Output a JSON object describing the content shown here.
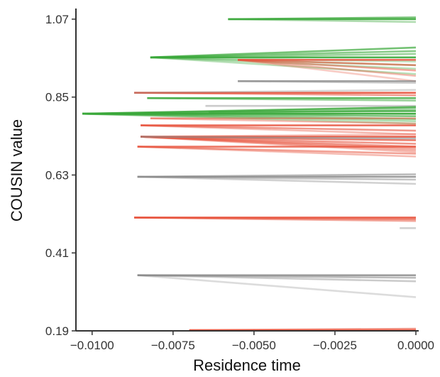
{
  "chart_data": {
    "type": "line",
    "title": "",
    "xlabel": "Residence time",
    "ylabel": "COUSIN value",
    "xlim": [
      -0.0105,
      0.0
    ],
    "ylim": [
      0.19,
      1.1
    ],
    "grid": false,
    "legend": "none",
    "x_ticks": [
      -0.01,
      -0.0075,
      -0.005,
      -0.0025,
      0.0
    ],
    "x_tick_labels": [
      "−0.0100",
      "−0.0075",
      "−0.0050",
      "−0.0025",
      "0.0000"
    ],
    "y_ticks": [
      0.19,
      0.41,
      0.63,
      0.85,
      1.07
    ],
    "y_tick_labels": [
      "0.19",
      "0.41",
      "0.63",
      "0.85",
      "1.07"
    ],
    "colors": {
      "green": "#3aa83a",
      "red": "#e8553f",
      "gray": "#8c8c8c"
    },
    "series": [
      {
        "group": "green",
        "opacity": 0.9,
        "x": [
          -0.0058,
          0.0
        ],
        "y": [
          1.07,
          1.07
        ]
      },
      {
        "group": "green",
        "opacity": 0.7,
        "x": [
          -0.0058,
          0.0
        ],
        "y": [
          1.07,
          1.075
        ]
      },
      {
        "group": "green",
        "opacity": 0.4,
        "x": [
          -0.0058,
          0.0
        ],
        "y": [
          1.07,
          1.062
        ]
      },
      {
        "group": "green",
        "opacity": 0.9,
        "x": [
          -0.0082,
          0.0
        ],
        "y": [
          0.962,
          0.962
        ]
      },
      {
        "group": "green",
        "opacity": 0.7,
        "x": [
          -0.0082,
          0.0
        ],
        "y": [
          0.962,
          0.99
        ]
      },
      {
        "group": "green",
        "opacity": 0.6,
        "x": [
          -0.0082,
          0.0
        ],
        "y": [
          0.962,
          0.98
        ]
      },
      {
        "group": "green",
        "opacity": 0.5,
        "x": [
          -0.0082,
          0.0
        ],
        "y": [
          0.962,
          0.972
        ]
      },
      {
        "group": "green",
        "opacity": 0.4,
        "x": [
          -0.0082,
          0.0
        ],
        "y": [
          0.962,
          0.94
        ]
      },
      {
        "group": "green",
        "opacity": 0.35,
        "x": [
          -0.0082,
          0.0
        ],
        "y": [
          0.962,
          0.93
        ]
      },
      {
        "group": "green",
        "opacity": 0.35,
        "x": [
          -0.0082,
          0.0
        ],
        "y": [
          0.962,
          0.915
        ]
      },
      {
        "group": "green",
        "opacity": 0.3,
        "x": [
          -0.0082,
          0.0
        ],
        "y": [
          0.962,
          0.95
        ]
      },
      {
        "group": "red",
        "opacity": 0.85,
        "x": [
          -0.0055,
          0.0
        ],
        "y": [
          0.955,
          0.955
        ]
      },
      {
        "group": "red",
        "opacity": 0.6,
        "x": [
          -0.0055,
          0.0
        ],
        "y": [
          0.955,
          0.94
        ]
      },
      {
        "group": "red",
        "opacity": 0.5,
        "x": [
          -0.0055,
          0.0
        ],
        "y": [
          0.955,
          0.925
        ]
      },
      {
        "group": "red",
        "opacity": 0.4,
        "x": [
          -0.0055,
          0.0
        ],
        "y": [
          0.955,
          0.91
        ]
      },
      {
        "group": "red",
        "opacity": 0.3,
        "x": [
          -0.0055,
          0.0
        ],
        "y": [
          0.955,
          0.895
        ]
      },
      {
        "group": "gray",
        "opacity": 0.8,
        "x": [
          -0.0055,
          0.0
        ],
        "y": [
          0.895,
          0.895
        ]
      },
      {
        "group": "gray",
        "opacity": 0.4,
        "x": [
          -0.0055,
          0.0
        ],
        "y": [
          0.895,
          0.89
        ]
      },
      {
        "group": "red",
        "opacity": 0.9,
        "x": [
          -0.0087,
          0.0
        ],
        "y": [
          0.862,
          0.862
        ]
      },
      {
        "group": "red",
        "opacity": 0.6,
        "x": [
          -0.0087,
          0.0
        ],
        "y": [
          0.862,
          0.855
        ]
      },
      {
        "group": "gray",
        "opacity": 0.35,
        "x": [
          -0.0087,
          0.0
        ],
        "y": [
          0.862,
          0.87
        ]
      },
      {
        "group": "green",
        "opacity": 0.8,
        "x": [
          -0.0083,
          0.0
        ],
        "y": [
          0.847,
          0.847
        ]
      },
      {
        "group": "green",
        "opacity": 0.5,
        "x": [
          -0.0083,
          0.0
        ],
        "y": [
          0.847,
          0.84
        ]
      },
      {
        "group": "gray",
        "opacity": 0.45,
        "x": [
          -0.0065,
          0.0
        ],
        "y": [
          0.825,
          0.825
        ]
      },
      {
        "group": "green",
        "opacity": 0.95,
        "x": [
          -0.0103,
          0.0
        ],
        "y": [
          0.803,
          0.803
        ]
      },
      {
        "group": "green",
        "opacity": 0.8,
        "x": [
          -0.0103,
          0.0
        ],
        "y": [
          0.803,
          0.822
        ]
      },
      {
        "group": "green",
        "opacity": 0.7,
        "x": [
          -0.0103,
          0.0
        ],
        "y": [
          0.803,
          0.812
        ]
      },
      {
        "group": "green",
        "opacity": 0.65,
        "x": [
          -0.0103,
          0.0
        ],
        "y": [
          0.803,
          0.796
        ]
      },
      {
        "group": "green",
        "opacity": 0.55,
        "x": [
          -0.0103,
          0.0
        ],
        "y": [
          0.803,
          0.788
        ]
      },
      {
        "group": "green",
        "opacity": 0.5,
        "x": [
          -0.0103,
          0.0
        ],
        "y": [
          0.803,
          0.818
        ]
      },
      {
        "group": "green",
        "opacity": 0.4,
        "x": [
          -0.0103,
          0.0
        ],
        "y": [
          0.803,
          0.782
        ]
      },
      {
        "group": "green",
        "opacity": 0.35,
        "x": [
          -0.0103,
          0.0
        ],
        "y": [
          0.803,
          0.775
        ]
      },
      {
        "group": "green",
        "opacity": 0.6,
        "x": [
          -0.0064,
          0.0
        ],
        "y": [
          0.808,
          0.81
        ]
      },
      {
        "group": "red",
        "opacity": 0.5,
        "x": [
          -0.0082,
          0.0
        ],
        "y": [
          0.79,
          0.79
        ]
      },
      {
        "group": "red",
        "opacity": 0.4,
        "x": [
          -0.0082,
          0.0
        ],
        "y": [
          0.79,
          0.775
        ]
      },
      {
        "group": "red",
        "opacity": 0.85,
        "x": [
          -0.0085,
          0.0
        ],
        "y": [
          0.77,
          0.77
        ]
      },
      {
        "group": "red",
        "opacity": 0.6,
        "x": [
          -0.0085,
          0.0
        ],
        "y": [
          0.77,
          0.755
        ]
      },
      {
        "group": "red",
        "opacity": 0.4,
        "x": [
          -0.0085,
          0.0
        ],
        "y": [
          0.77,
          0.745
        ]
      },
      {
        "group": "red",
        "opacity": 0.9,
        "x": [
          -0.0085,
          0.0
        ],
        "y": [
          0.738,
          0.738
        ]
      },
      {
        "group": "red",
        "opacity": 0.75,
        "x": [
          -0.0085,
          0.0
        ],
        "y": [
          0.738,
          0.728
        ]
      },
      {
        "group": "red",
        "opacity": 0.6,
        "x": [
          -0.0085,
          0.0
        ],
        "y": [
          0.738,
          0.718
        ]
      },
      {
        "group": "red",
        "opacity": 0.55,
        "x": [
          -0.0085,
          0.0
        ],
        "y": [
          0.738,
          0.71
        ]
      },
      {
        "group": "red",
        "opacity": 0.5,
        "x": [
          -0.0085,
          0.0
        ],
        "y": [
          0.738,
          0.705
        ]
      },
      {
        "group": "red",
        "opacity": 0.45,
        "x": [
          -0.0085,
          0.0
        ],
        "y": [
          0.738,
          0.7
        ]
      },
      {
        "group": "red",
        "opacity": 0.4,
        "x": [
          -0.0085,
          0.0
        ],
        "y": [
          0.738,
          0.695
        ]
      },
      {
        "group": "red",
        "opacity": 0.35,
        "x": [
          -0.0085,
          0.0
        ],
        "y": [
          0.738,
          0.745
        ]
      },
      {
        "group": "gray",
        "opacity": 0.6,
        "x": [
          -0.0085,
          0.0
        ],
        "y": [
          0.738,
          0.733
        ]
      },
      {
        "group": "red",
        "opacity": 0.8,
        "x": [
          -0.0086,
          0.0
        ],
        "y": [
          0.71,
          0.71
        ]
      },
      {
        "group": "red",
        "opacity": 0.55,
        "x": [
          -0.0086,
          0.0
        ],
        "y": [
          0.71,
          0.69
        ]
      },
      {
        "group": "red",
        "opacity": 0.4,
        "x": [
          -0.0086,
          0.0
        ],
        "y": [
          0.71,
          0.682
        ]
      },
      {
        "group": "gray",
        "opacity": 0.85,
        "x": [
          -0.0086,
          0.0
        ],
        "y": [
          0.625,
          0.625
        ]
      },
      {
        "group": "gray",
        "opacity": 0.6,
        "x": [
          -0.0086,
          0.0
        ],
        "y": [
          0.625,
          0.632
        ]
      },
      {
        "group": "gray",
        "opacity": 0.5,
        "x": [
          -0.0086,
          0.0
        ],
        "y": [
          0.625,
          0.617
        ]
      },
      {
        "group": "gray",
        "opacity": 0.4,
        "x": [
          -0.0086,
          0.0
        ],
        "y": [
          0.625,
          0.605
        ]
      },
      {
        "group": "red",
        "opacity": 0.9,
        "x": [
          -0.0087,
          0.0
        ],
        "y": [
          0.51,
          0.51
        ]
      },
      {
        "group": "red",
        "opacity": 0.7,
        "x": [
          -0.0087,
          0.0
        ],
        "y": [
          0.51,
          0.505
        ]
      },
      {
        "group": "red",
        "opacity": 0.5,
        "x": [
          -0.0087,
          0.0
        ],
        "y": [
          0.51,
          0.5
        ]
      },
      {
        "group": "gray",
        "opacity": 0.4,
        "x": [
          -0.0005,
          0.0
        ],
        "y": [
          0.48,
          0.48
        ]
      },
      {
        "group": "gray",
        "opacity": 0.85,
        "x": [
          -0.0086,
          0.0
        ],
        "y": [
          0.347,
          0.347
        ]
      },
      {
        "group": "gray",
        "opacity": 0.6,
        "x": [
          -0.0086,
          0.0
        ],
        "y": [
          0.347,
          0.34
        ]
      },
      {
        "group": "gray",
        "opacity": 0.45,
        "x": [
          -0.0086,
          0.0
        ],
        "y": [
          0.347,
          0.33
        ]
      },
      {
        "group": "gray",
        "opacity": 0.3,
        "x": [
          -0.0086,
          0.0
        ],
        "y": [
          0.347,
          0.285
        ]
      },
      {
        "group": "red",
        "opacity": 0.9,
        "x": [
          -0.007,
          0.0
        ],
        "y": [
          0.192,
          0.192
        ]
      },
      {
        "group": "red",
        "opacity": 0.6,
        "x": [
          -0.007,
          0.0
        ],
        "y": [
          0.192,
          0.196
        ]
      }
    ]
  }
}
